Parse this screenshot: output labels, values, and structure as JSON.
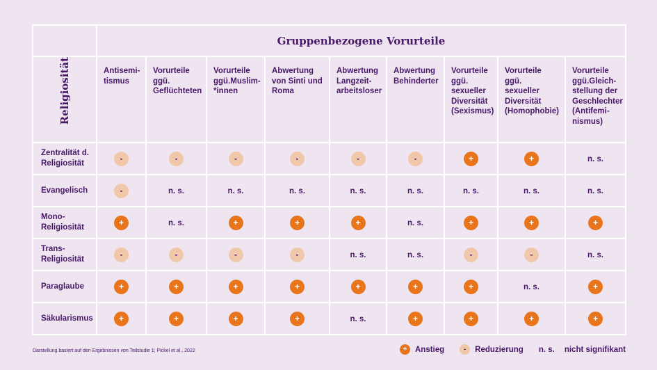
{
  "title": "Gruppenbezogene Vorurteile",
  "axis_label": "Religiosität",
  "columns": [
    "Antisemi-\ntismus",
    "Vorurteile\nggü.\nGeflüchteten",
    "Vorurteile\nggü.Muslim-\n*innen",
    "Abwertung\nvon Sinti und\nRoma",
    "Abwertung\nLangzeit-\narbeitsloser",
    "Abwertung\nBehinderter",
    "Vorurteile\nggü.\nsexueller\nDiversität\n(Sexismus)",
    "Vorurteile\nggü.\nsexueller\nDiversität\n(Homophobie)",
    "Vorurteile\nggü.Gleich-\nstellung der\nGeschlechter\n(Antifemi-\nnismus)"
  ],
  "rows": [
    {
      "label": "Zentralität d.\nReligiosität",
      "values": [
        "-",
        "-",
        "-",
        "-",
        "-",
        "-",
        "+",
        "+",
        "n. s."
      ]
    },
    {
      "label": "Evangelisch",
      "values": [
        "-",
        "n. s.",
        "n. s.",
        "n. s.",
        "n. s.",
        "n. s.",
        "n. s.",
        "n. s.",
        "n. s."
      ]
    },
    {
      "label": "Mono-\nReligiosität",
      "values": [
        "+",
        "n. s.",
        "+",
        "+",
        "+",
        "n. s.",
        "+",
        "+",
        "+"
      ]
    },
    {
      "label": "Trans-\nReligiosität",
      "values": [
        "-",
        "-",
        "-",
        "-",
        "n. s.",
        "n. s.",
        "-",
        "-",
        "n. s."
      ]
    },
    {
      "label": "Paraglaube",
      "values": [
        "+",
        "+",
        "+",
        "+",
        "+",
        "+",
        "+",
        "n. s.",
        "+"
      ]
    },
    {
      "label": "Säkularismus",
      "values": [
        "+",
        "+",
        "+",
        "+",
        "n. s.",
        "+",
        "+",
        "+",
        "+"
      ]
    }
  ],
  "footnote": "Darstellung basiert auf den Ergebnissen von Teilstudie 1; Pickel et al., 2022",
  "legend": {
    "plus_symbol": "+",
    "plus_label": "Anstieg",
    "minus_symbol": "-",
    "minus_label": "Reduzierung",
    "ns_symbol": "n. s.",
    "ns_label": "nicht signifikant"
  },
  "colors": {
    "background": "#eee5f1",
    "text": "#4a1869",
    "increase": "#e8741c",
    "decrease": "#f0c8a9"
  }
}
